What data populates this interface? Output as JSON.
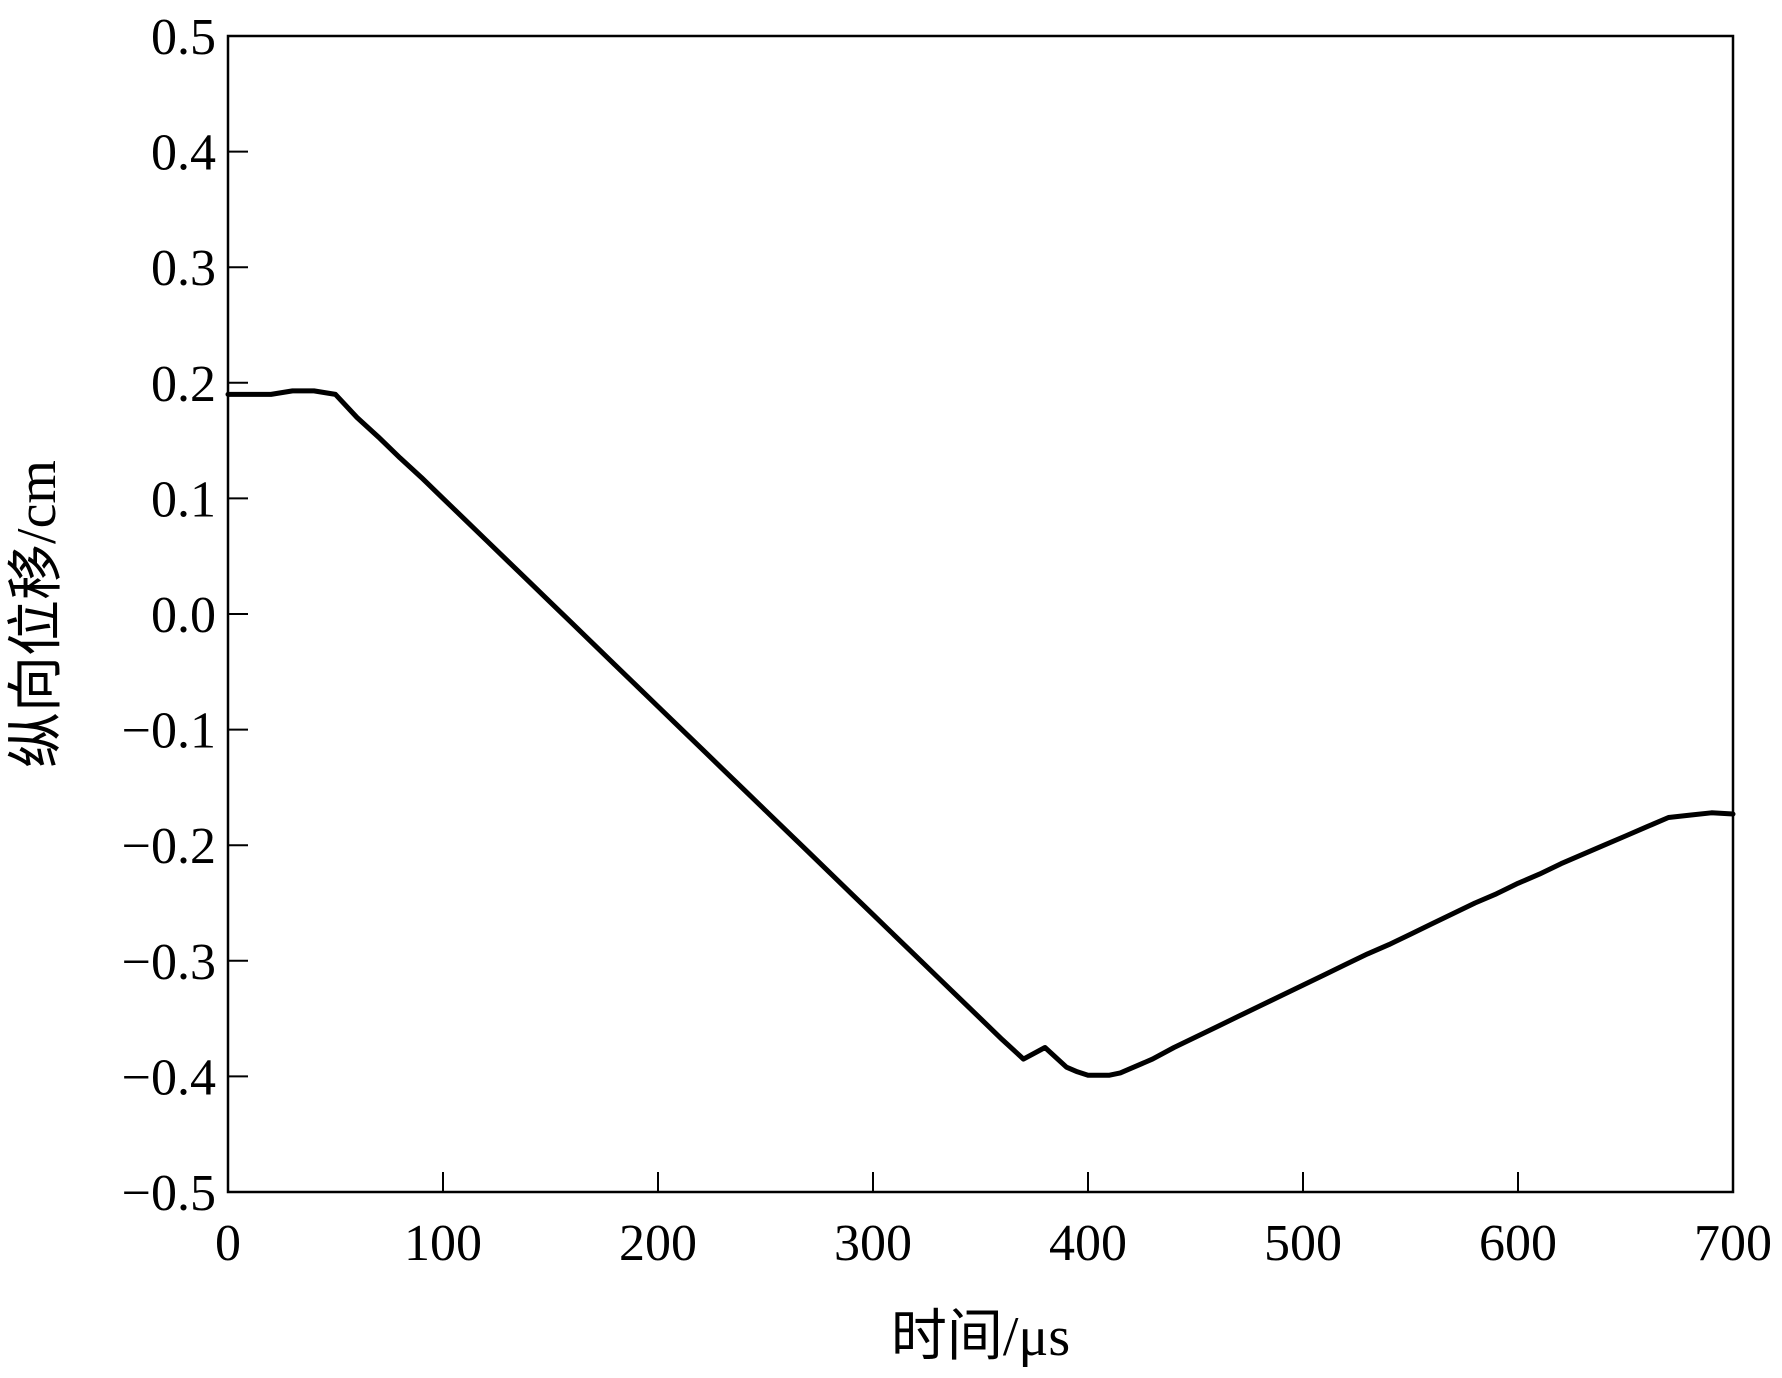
{
  "chart_data": {
    "type": "line",
    "title": "",
    "xlabel": "时间/μs",
    "ylabel": "纵向位移/cm",
    "xlim": [
      0,
      700
    ],
    "ylim": [
      -0.5,
      0.5
    ],
    "x_ticks": [
      0,
      100,
      200,
      300,
      400,
      500,
      600,
      700
    ],
    "x_tick_labels": [
      "0",
      "100",
      "200",
      "300",
      "400",
      "500",
      "600",
      "700"
    ],
    "y_ticks": [
      0.5,
      0.4,
      0.3,
      0.2,
      0.1,
      0.0,
      -0.1,
      -0.2,
      -0.3,
      -0.4,
      -0.5
    ],
    "y_tick_labels": [
      "0.5",
      "0.4",
      "0.3",
      "0.2",
      "0.1",
      "0.0",
      "−0.1",
      "−0.2",
      "−0.3",
      "−0.4",
      "−0.5"
    ],
    "grid": false,
    "legend": "none",
    "line_color": "#000000",
    "series": [
      {
        "x": [
          0,
          10,
          20,
          30,
          40,
          50,
          60,
          70,
          80,
          90,
          100,
          110,
          120,
          130,
          140,
          150,
          160,
          170,
          180,
          190,
          200,
          210,
          220,
          230,
          240,
          250,
          260,
          270,
          280,
          290,
          300,
          310,
          320,
          330,
          340,
          350,
          360,
          370,
          380,
          390,
          395,
          400,
          405,
          410,
          415,
          420,
          430,
          440,
          450,
          460,
          470,
          480,
          490,
          500,
          510,
          520,
          530,
          540,
          550,
          560,
          570,
          580,
          590,
          600,
          610,
          620,
          630,
          640,
          650,
          660,
          670,
          680,
          690,
          700
        ],
        "values": [
          0.19,
          0.19,
          0.19,
          0.193,
          0.193,
          0.19,
          0.17,
          0.153,
          0.135,
          0.118,
          0.1,
          0.082,
          0.064,
          0.046,
          0.028,
          0.01,
          -0.008,
          -0.026,
          -0.044,
          -0.062,
          -0.08,
          -0.098,
          -0.116,
          -0.134,
          -0.152,
          -0.17,
          -0.188,
          -0.206,
          -0.224,
          -0.242,
          -0.26,
          -0.278,
          -0.296,
          -0.314,
          -0.332,
          -0.35,
          -0.368,
          -0.385,
          -0.375,
          -0.392,
          -0.396,
          -0.399,
          -0.399,
          -0.399,
          -0.397,
          -0.393,
          -0.385,
          -0.375,
          -0.366,
          -0.357,
          -0.348,
          -0.339,
          -0.33,
          -0.321,
          -0.312,
          -0.303,
          -0.294,
          -0.286,
          -0.277,
          -0.268,
          -0.259,
          -0.25,
          -0.242,
          -0.233,
          -0.225,
          -0.216,
          -0.208,
          -0.2,
          -0.192,
          -0.184,
          -0.176,
          -0.174,
          -0.172,
          -0.173
        ]
      }
    ]
  }
}
